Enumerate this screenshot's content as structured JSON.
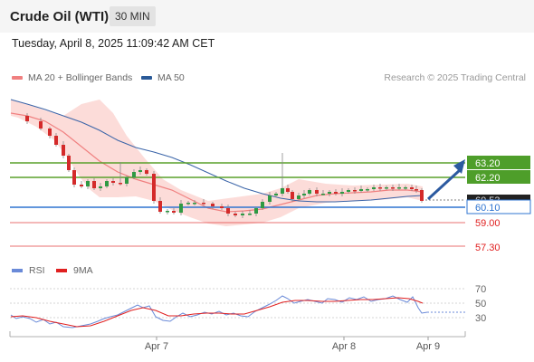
{
  "instrument": {
    "title": "Crude Oil (WTI)",
    "timeframe": "30 MIN"
  },
  "timestamp": "Tuesday, April 8, 2025 11:09:42 AM CET",
  "legend": {
    "ma20": {
      "label": "MA 20 + Bollinger Bands",
      "color": "#f08080"
    },
    "ma50": {
      "label": "MA 50",
      "color": "#2a5a98"
    }
  },
  "credit": "Research © 2025 Trading Central",
  "levels": [
    {
      "label": "63.20",
      "kind": "resistance",
      "color": "#5aa02c"
    },
    {
      "label": "62.20",
      "kind": "resistance",
      "color": "#5aa02c"
    },
    {
      "label": "60.53",
      "kind": "last",
      "color": "#222222"
    },
    {
      "label": "60.10",
      "kind": "pivot",
      "color": "#2f74d0"
    },
    {
      "label": "59.00",
      "kind": "support",
      "color": "#e02020"
    },
    {
      "label": "57.30",
      "kind": "support",
      "color": "#e02020"
    }
  ],
  "rsi": {
    "legend_rsi": "RSI",
    "legend_ma": "9MA",
    "rsi_color": "#6a8ad8",
    "ma_color": "#e02020",
    "ticks": [
      "70",
      "50",
      "30"
    ]
  },
  "x_axis": {
    "labels": [
      "Apr 7",
      "Apr 8",
      "Apr 9"
    ]
  }
}
